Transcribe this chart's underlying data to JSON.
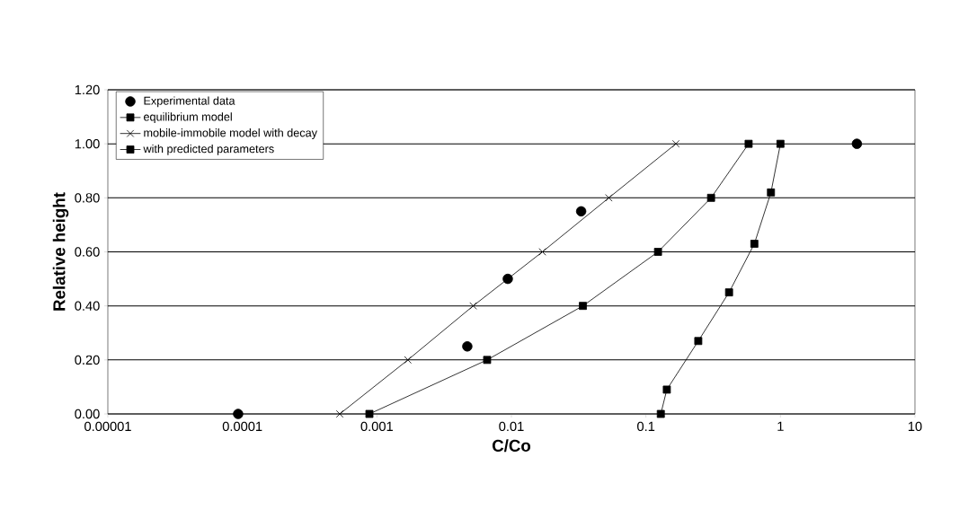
{
  "chart_data": {
    "type": "line",
    "xlabel": "C/Co",
    "ylabel": "Relative height",
    "log": "x",
    "grid": "y",
    "legend": "top left",
    "xlim": [
      1e-05,
      10
    ],
    "ylim": [
      0,
      1.2
    ],
    "xticks": [
      {
        "value": 1e-05,
        "label": "0.00001"
      },
      {
        "value": 0.0001,
        "label": "0.0001"
      },
      {
        "value": 0.001,
        "label": "0.001"
      },
      {
        "value": 0.01,
        "label": "0.01"
      },
      {
        "value": 0.1,
        "label": "0.1"
      },
      {
        "value": 1,
        "label": "1"
      },
      {
        "value": 10,
        "label": "10"
      }
    ],
    "yticks": [
      {
        "value": 0,
        "label": "0.00"
      },
      {
        "value": 0.2,
        "label": "0.20"
      },
      {
        "value": 0.4,
        "label": "0.40"
      },
      {
        "value": 0.6,
        "label": "0.60"
      },
      {
        "value": 0.8,
        "label": "0.80"
      },
      {
        "value": 1.0,
        "label": "1.00"
      },
      {
        "value": 1.2,
        "label": "1.20"
      }
    ],
    "series": [
      {
        "name": "Experimental data",
        "type": "scatter",
        "marker": "circle",
        "color": "#000000",
        "x": [
          9.3e-05,
          0.0047,
          0.0094,
          0.033,
          3.7
        ],
        "values": [
          0,
          0.25,
          0.5,
          0.75,
          1.0
        ]
      },
      {
        "name": "equilibrium model",
        "marker": "square",
        "color": "#000000",
        "x": [
          0.00088,
          0.0066,
          0.034,
          0.123,
          0.305,
          0.58
        ],
        "values": [
          0,
          0.2,
          0.4,
          0.6,
          0.8,
          1.0
        ]
      },
      {
        "name": "mobile-immobile model with decay",
        "marker": "cross",
        "color": "#000000",
        "x": [
          0.00053,
          0.0017,
          0.0052,
          0.017,
          0.053,
          0.167
        ],
        "values": [
          0,
          0.2,
          0.4,
          0.6,
          0.8,
          1.0
        ]
      },
      {
        "name": "with predicted parameters",
        "marker": "square",
        "color": "#000000",
        "x": [
          0.129,
          0.143,
          0.245,
          0.415,
          0.64,
          0.85,
          1.0
        ],
        "values": [
          0,
          0.09,
          0.27,
          0.45,
          0.63,
          0.82,
          1.0
        ]
      }
    ]
  }
}
